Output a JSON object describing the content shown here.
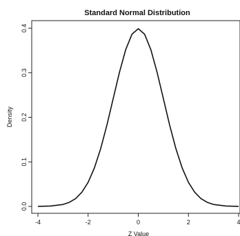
{
  "chart_data": {
    "type": "line",
    "title": "Standard Normal Distribution",
    "xlabel": "Z Value",
    "ylabel": "Density",
    "xlim": [
      -4,
      4
    ],
    "ylim": [
      0,
      0.4
    ],
    "x_ticks": [
      "-4",
      "-2",
      "0",
      "2",
      "4"
    ],
    "y_ticks": [
      "0.0",
      "0.1",
      "0.2",
      "0.3",
      "0.4"
    ],
    "grid": false,
    "series": [
      {
        "x": [
          -4.0,
          -3.5,
          -3.0,
          -2.75,
          -2.5,
          -2.25,
          -2.0,
          -1.75,
          -1.5,
          -1.25,
          -1.0,
          -0.75,
          -0.5,
          -0.25,
          0.0,
          0.25,
          0.5,
          0.75,
          1.0,
          1.25,
          1.5,
          1.75,
          2.0,
          2.25,
          2.5,
          2.75,
          3.0,
          3.5,
          4.0
        ],
        "y": [
          0.0001,
          0.0009,
          0.0044,
          0.0091,
          0.0175,
          0.0317,
          0.054,
          0.0863,
          0.1295,
          0.1826,
          0.242,
          0.3011,
          0.3521,
          0.3867,
          0.3989,
          0.3867,
          0.3521,
          0.3011,
          0.242,
          0.1826,
          0.1295,
          0.0863,
          0.054,
          0.0317,
          0.0175,
          0.0091,
          0.0044,
          0.0009,
          0.0001
        ]
      }
    ]
  }
}
